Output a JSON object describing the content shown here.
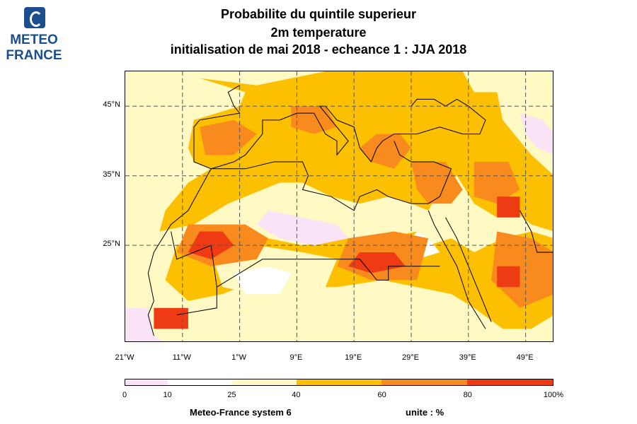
{
  "logo": {
    "line1": "METEO",
    "line2": "FRANCE"
  },
  "title": {
    "line1": "Probabilite du quintile superieur",
    "line2": "2m temperature",
    "line3": "initialisation de mai 2018  -  echeance 1 : JJA 2018"
  },
  "map": {
    "region": {
      "lon_min": -21,
      "lon_max": 54,
      "lat_min": 11,
      "lat_max": 50
    },
    "lat_ticks": [
      {
        "value": 45,
        "label": "45°N"
      },
      {
        "value": 35,
        "label": "35°N"
      },
      {
        "value": 25,
        "label": "25°N"
      }
    ],
    "lon_ticks": [
      {
        "value": -21,
        "label": "21°W"
      },
      {
        "value": -11,
        "label": "11°W"
      },
      {
        "value": -1,
        "label": "1°W"
      },
      {
        "value": 9,
        "label": "9°E"
      },
      {
        "value": 19,
        "label": "19°E"
      },
      {
        "value": 29,
        "label": "29°E"
      },
      {
        "value": 39,
        "label": "39°E"
      },
      {
        "value": 49,
        "label": "49°E"
      }
    ],
    "gridlines": "dashed"
  },
  "colorbar": {
    "bins": [
      {
        "from": 0,
        "to": 10,
        "color": "#fbe3f7"
      },
      {
        "from": 10,
        "to": 25,
        "color": "#ffffff"
      },
      {
        "from": 25,
        "to": 40,
        "color": "#fff9c4"
      },
      {
        "from": 40,
        "to": 60,
        "color": "#fcc000"
      },
      {
        "from": 60,
        "to": 80,
        "color": "#f98a1e"
      },
      {
        "from": 80,
        "to": 100,
        "color": "#ef3b14"
      }
    ],
    "labels": [
      "0",
      "10",
      "25",
      "40",
      "60",
      "80",
      "100%"
    ]
  },
  "footer": {
    "model": "Meteo-France system 6",
    "unit": "unite : %"
  }
}
